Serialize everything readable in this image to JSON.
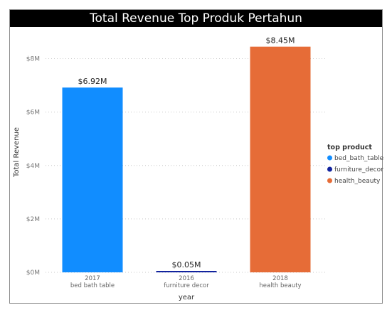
{
  "chart_data": {
    "type": "bar",
    "title": "Total Revenue Top Produk Pertahun",
    "xlabel": "year",
    "ylabel": "Total Revenue",
    "ylim": [
      0,
      9000000
    ],
    "yticks": [
      0,
      2000000,
      4000000,
      6000000,
      8000000
    ],
    "ytick_labels": [
      "$0M",
      "$2M",
      "$4M",
      "$6M",
      "$8M"
    ],
    "grid": true,
    "legend_title": "top product",
    "legend_position": "right",
    "bars": [
      {
        "year": "2017",
        "product": "bed_bath_table",
        "category_label": "bed bath table",
        "value": 6920000,
        "label": "$6.92M",
        "color": "#118DFF"
      },
      {
        "year": "2016",
        "product": "furniture_decor",
        "category_label": "furniture decor",
        "value": 50000,
        "label": "$0.05M",
        "color": "#12239E"
      },
      {
        "year": "2018",
        "product": "health_beauty",
        "category_label": "health beauty",
        "value": 8450000,
        "label": "$8.45M",
        "color": "#E66C37"
      }
    ],
    "legend": [
      {
        "name": "bed_bath_table",
        "color": "#118DFF"
      },
      {
        "name": "furniture_decor",
        "color": "#12239E"
      },
      {
        "name": "health_beauty",
        "color": "#E66C37"
      }
    ]
  }
}
